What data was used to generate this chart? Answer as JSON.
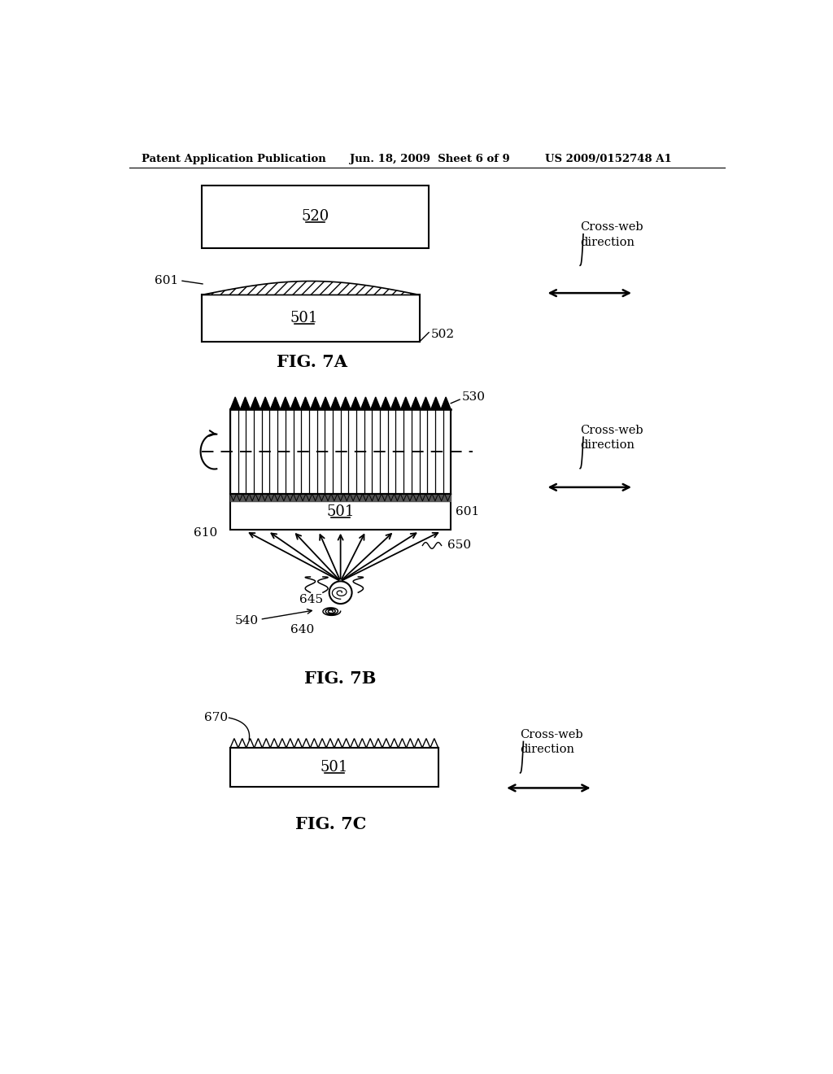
{
  "bg_color": "#ffffff",
  "header_left": "Patent Application Publication",
  "header_center": "Jun. 18, 2009  Sheet 6 of 9",
  "header_right": "US 2009/0152748 A1",
  "fig7a_label": "FIG. 7A",
  "fig7b_label": "FIG. 7B",
  "fig7c_label": "FIG. 7C",
  "label_520": "520",
  "label_501": "501",
  "label_502": "502",
  "label_530": "530",
  "label_601": "601",
  "label_610": "610",
  "label_650": "650",
  "label_645": "645",
  "label_640": "640",
  "label_540": "540",
  "label_670": "670",
  "crossweb_label": "Cross-web\ndirection"
}
